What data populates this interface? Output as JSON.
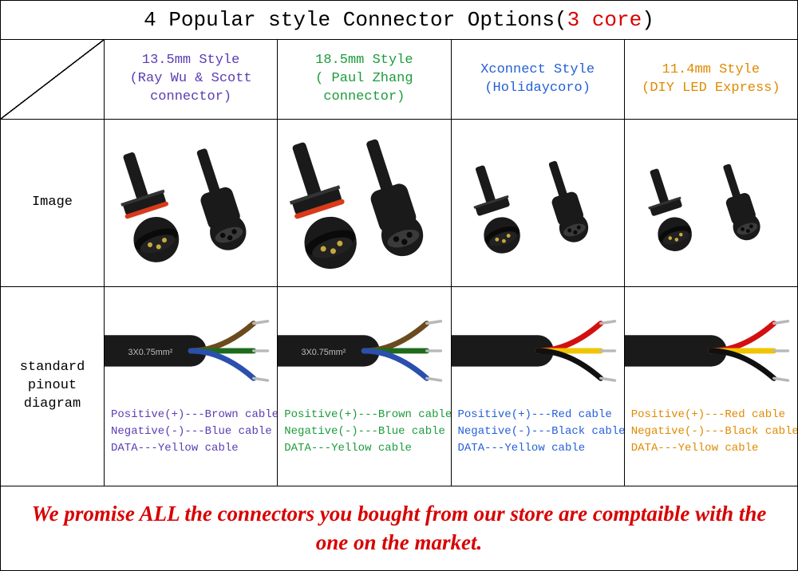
{
  "title": {
    "main": "4 Popular style Connector Options(",
    "core": "3 core",
    "close": ")"
  },
  "rowLabels": {
    "image": "Image",
    "pinout": "standard pinout diagram"
  },
  "colors": {
    "purple": "#5b3db2",
    "green": "#1c9c3b",
    "blue": "#2460d8",
    "orange": "#e08a00",
    "red": "#d80000",
    "black": "#000000",
    "cableSheath": "#1a1a1a",
    "cableText": "#bdbdbd",
    "wireBrown": "#6b4a1e",
    "wireGreen": "#1e6b1e",
    "wireBlue": "#2a4fae",
    "wireRed": "#d31010",
    "wireYellow": "#f0c400",
    "wireBlack": "#101010",
    "connRing": "#d83a1a",
    "pinGold": "#c8a93c",
    "tip": "#b8b8b8"
  },
  "columns": [
    {
      "id": "col1",
      "headerColor": "#5b3db2",
      "headerLines": [
        "13.5mm Style",
        "(Ray Wu & Scott",
        "connector)"
      ],
      "conn": {
        "ring": true,
        "scale": 1.0
      },
      "cable": {
        "label": "3X0.75mm²",
        "wires": [
          "#6b4a1e",
          "#1e6b1e",
          "#2a4fae"
        ]
      },
      "pinoutColor": "#5b3db2",
      "pinout": [
        {
          "k": "Positive(+)",
          "v": "Brown cable"
        },
        {
          "k": "Negative(-)",
          "v": "Blue cable"
        },
        {
          "k": "DATA",
          "v": "Yellow cable"
        }
      ]
    },
    {
      "id": "col2",
      "headerColor": "#1c9c3b",
      "headerLines": [
        "18.5mm Style",
        "( Paul Zhang",
        "connector)"
      ],
      "conn": {
        "ring": true,
        "scale": 1.15
      },
      "cable": {
        "label": "3X0.75mm²",
        "wires": [
          "#6b4a1e",
          "#1e6b1e",
          "#2a4fae"
        ]
      },
      "pinoutColor": "#1c9c3b",
      "pinout": [
        {
          "k": "Positive(+)",
          "v": "Brown cable"
        },
        {
          "k": "Negative(-)",
          "v": "Blue cable"
        },
        {
          "k": "DATA",
          "v": "Yellow cable"
        }
      ]
    },
    {
      "id": "col3",
      "headerColor": "#2460d8",
      "headerLines": [
        "Xconnect Style",
        "(Holidaycoro)"
      ],
      "conn": {
        "ring": false,
        "scale": 0.8
      },
      "cable": {
        "label": "",
        "wires": [
          "#d31010",
          "#f0c400",
          "#101010"
        ]
      },
      "pinoutColor": "#2460d8",
      "pinout": [
        {
          "k": "Positive(+)",
          "v": "Red cable"
        },
        {
          "k": "Negative(-)",
          "v": "Black cable"
        },
        {
          "k": "DATA",
          "v": "Yellow cable"
        }
      ]
    },
    {
      "id": "col4",
      "headerColor": "#e08a00",
      "headerLines": [
        "11.4mm Style",
        "(DIY LED Express)"
      ],
      "conn": {
        "ring": false,
        "scale": 0.75
      },
      "cable": {
        "label": "",
        "wires": [
          "#d31010",
          "#f0c400",
          "#101010"
        ]
      },
      "pinoutColor": "#e08a00",
      "pinout": [
        {
          "k": "Positive(+)",
          "v": "Red cable"
        },
        {
          "k": "Negative(-)",
          "v": "Black cable"
        },
        {
          "k": "DATA",
          "v": "Yellow cable"
        }
      ]
    }
  ],
  "footer": "We promise ALL the connectors you bought from our store are comptaible with the one on the market."
}
